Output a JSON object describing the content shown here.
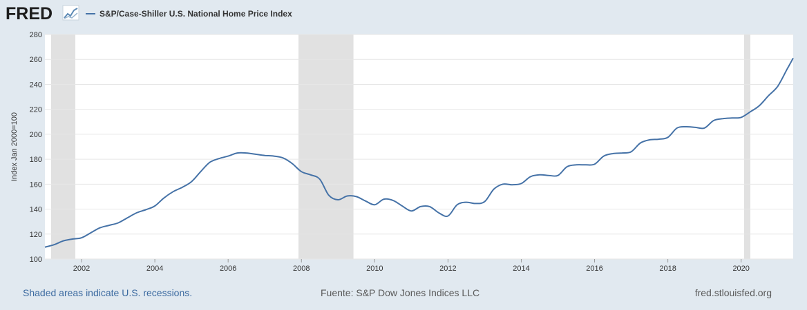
{
  "header": {
    "logo_text": "FRED",
    "legend_label": "S&P/Case-Shiller U.S. National Home Price Index"
  },
  "footer": {
    "recession_note": "Shaded areas indicate U.S. recessions.",
    "source": "Fuente: S&P Dow Jones Indices LLC",
    "site": "fred.stlouisfed.org"
  },
  "colors": {
    "line": "#4572a7",
    "recession": "#e1e1e1",
    "background": "#e1e9f0",
    "plot_background": "#ffffff",
    "grid": "#e6e6e6"
  },
  "chart_data": {
    "type": "line",
    "title": "",
    "xlabel": "",
    "ylabel": "Index Jan 2000=100",
    "xlim": [
      2001.0,
      2021.42
    ],
    "ylim": [
      100,
      280
    ],
    "x_ticks": [
      2002,
      2004,
      2006,
      2008,
      2010,
      2012,
      2014,
      2016,
      2018,
      2020
    ],
    "y_ticks": [
      100,
      120,
      140,
      160,
      180,
      200,
      220,
      240,
      260,
      280
    ],
    "grid": true,
    "legend_position": "top-left",
    "recessions": [
      {
        "start": 2001.17,
        "end": 2001.83
      },
      {
        "start": 2007.92,
        "end": 2009.42
      },
      {
        "start": 2020.08,
        "end": 2020.25
      }
    ],
    "series": [
      {
        "name": "S&P/Case-Shiller U.S. National Home Price Index",
        "x": [
          2001.0,
          2001.25,
          2001.5,
          2001.75,
          2002.0,
          2002.25,
          2002.5,
          2002.75,
          2003.0,
          2003.25,
          2003.5,
          2003.75,
          2004.0,
          2004.25,
          2004.5,
          2004.75,
          2005.0,
          2005.25,
          2005.5,
          2005.75,
          2006.0,
          2006.25,
          2006.5,
          2006.75,
          2007.0,
          2007.25,
          2007.5,
          2007.75,
          2008.0,
          2008.25,
          2008.5,
          2008.75,
          2009.0,
          2009.25,
          2009.5,
          2009.75,
          2010.0,
          2010.25,
          2010.5,
          2010.75,
          2011.0,
          2011.25,
          2011.5,
          2011.75,
          2012.0,
          2012.25,
          2012.5,
          2012.75,
          2013.0,
          2013.25,
          2013.5,
          2013.75,
          2014.0,
          2014.25,
          2014.5,
          2014.75,
          2015.0,
          2015.25,
          2015.5,
          2015.75,
          2016.0,
          2016.25,
          2016.5,
          2016.75,
          2017.0,
          2017.25,
          2017.5,
          2017.75,
          2018.0,
          2018.25,
          2018.5,
          2018.75,
          2019.0,
          2019.25,
          2019.5,
          2019.75,
          2020.0,
          2020.25,
          2020.5,
          2020.75,
          2021.0,
          2021.25,
          2021.42
        ],
        "values": [
          109.5,
          111.5,
          114.5,
          116.0,
          117.0,
          121.0,
          125.0,
          127.0,
          129.0,
          133.0,
          137.0,
          139.5,
          142.5,
          149.0,
          154.0,
          157.5,
          162.0,
          170.0,
          177.5,
          180.5,
          182.5,
          185.0,
          185.0,
          184.0,
          183.0,
          182.5,
          181.0,
          176.5,
          170.0,
          167.5,
          164.0,
          151.0,
          147.5,
          150.5,
          150.0,
          146.5,
          143.5,
          148.0,
          147.0,
          142.5,
          138.5,
          142.0,
          142.0,
          137.0,
          134.5,
          143.5,
          145.5,
          144.5,
          146.0,
          156.0,
          160.0,
          159.5,
          160.5,
          166.0,
          167.5,
          167.0,
          167.0,
          174.0,
          175.5,
          175.5,
          176.0,
          182.5,
          184.5,
          185.0,
          186.0,
          193.0,
          195.5,
          196.0,
          197.5,
          205.0,
          206.0,
          205.5,
          205.0,
          211.0,
          212.5,
          213.0,
          213.5,
          218.0,
          223.0,
          231.0,
          238.5,
          252.0,
          261.0
        ]
      }
    ]
  }
}
